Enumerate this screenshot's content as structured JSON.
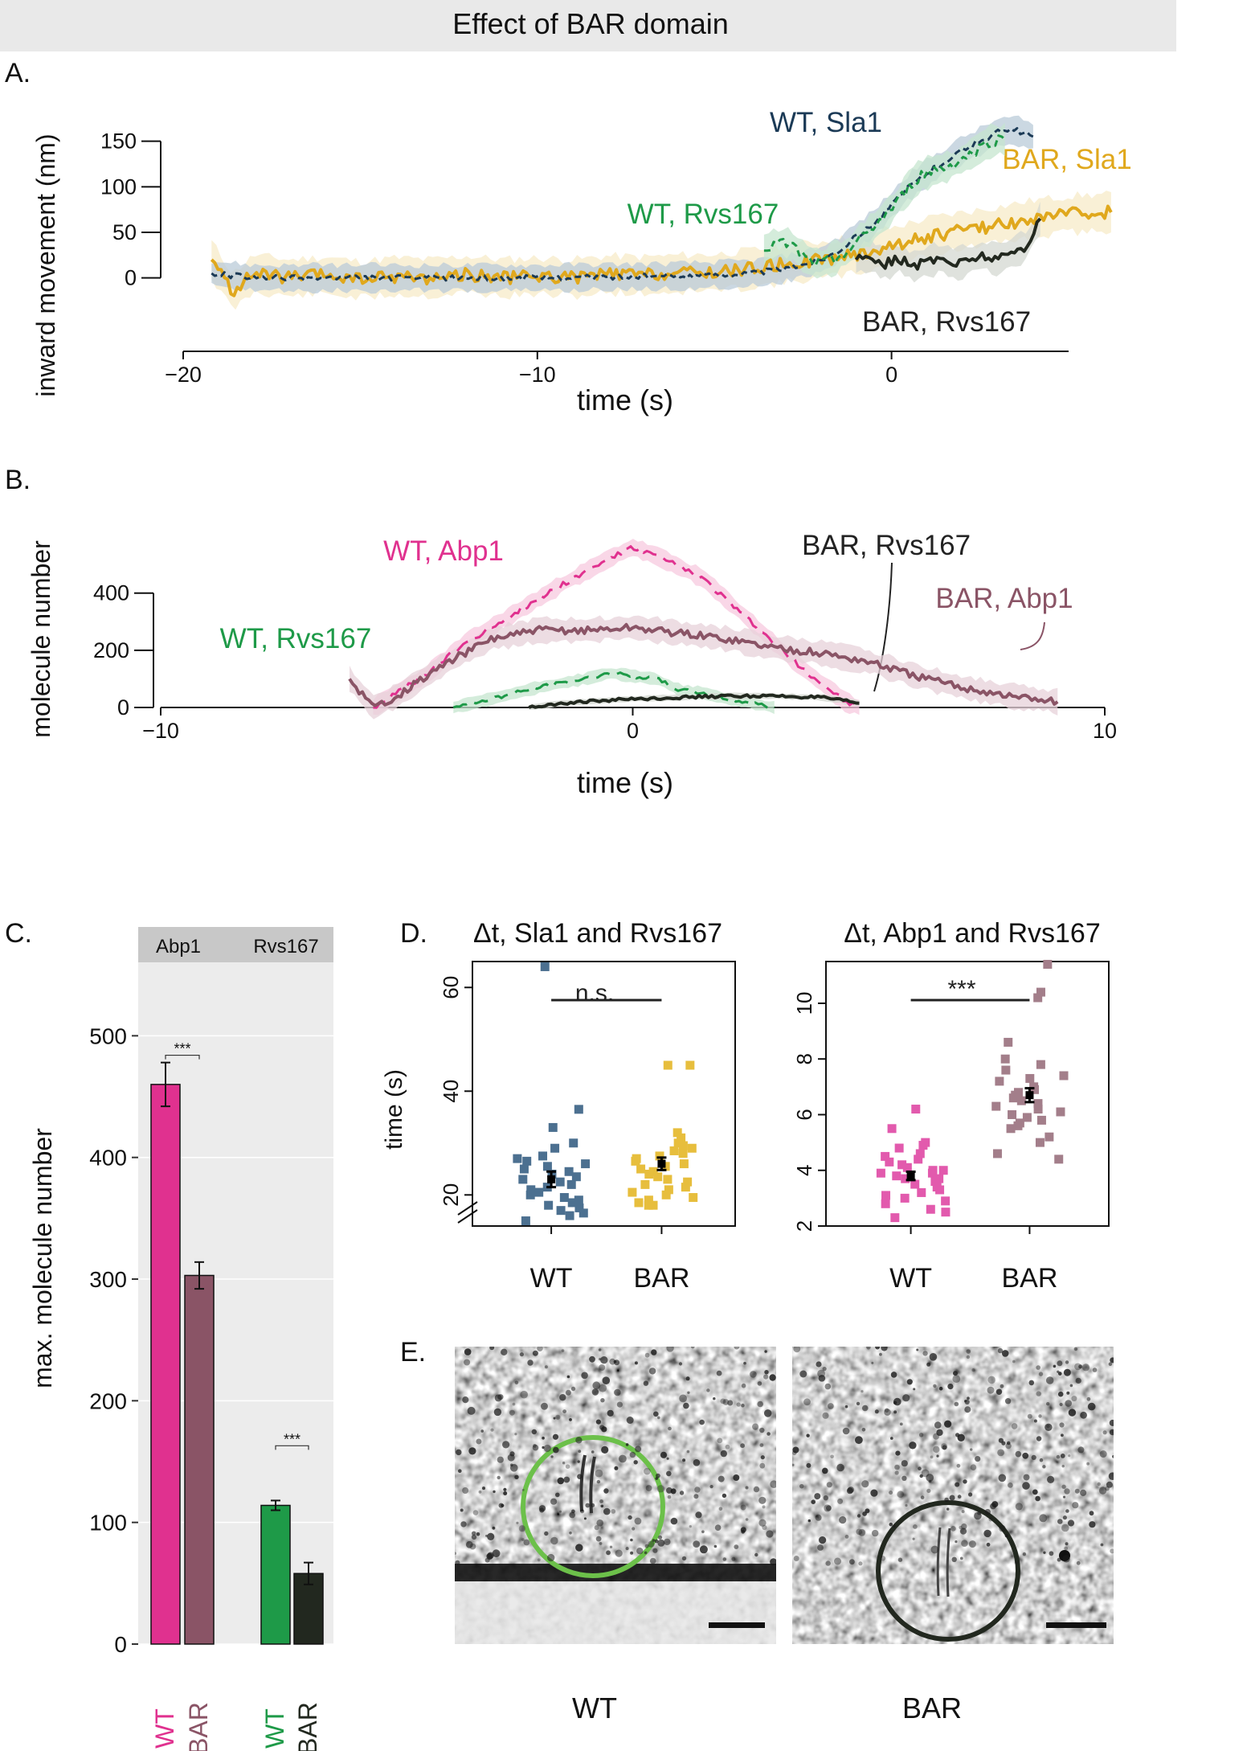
{
  "figure_title": "Effect of BAR domain",
  "colors": {
    "wt_sla1": "#1b3a56",
    "bar_sla1": "#e0a81d",
    "wt_rvs167": "#1e9a48",
    "bar_rvs167": "#22281f",
    "wt_abp1": "#e0318f",
    "bar_abp1": "#8a5466",
    "d_wt_sla1": "#4c7090",
    "d_bar_sla1": "#e7be3d",
    "d_wt_abp1": "#e25aad",
    "d_bar_abp1": "#a37e8a"
  },
  "panel_labels": {
    "a": "A.",
    "b": "B.",
    "c": "C.",
    "d": "D.",
    "e": "E."
  },
  "chart_data": [
    {
      "id": "A",
      "type": "line",
      "xlabel": "time (s)",
      "ylabel": "inward movement (nm)",
      "xlim": [
        -20,
        5
      ],
      "ylim": [
        -10,
        170
      ],
      "xticks": [
        -20,
        -10,
        0
      ],
      "xtick_labels": [
        "−20",
        "−10",
        "0"
      ],
      "yticks": [
        0,
        50,
        100,
        150
      ],
      "series": [
        {
          "name": "WT, Sla1",
          "style": "dashed",
          "color": "#1b3a56",
          "band": "#b9cbd8",
          "x": [
            -19.2,
            -18,
            -16,
            -14,
            -12,
            -10,
            -8,
            -6,
            -4,
            -3,
            -2,
            -1.5,
            -1,
            -0.5,
            0,
            0.5,
            1,
            1.5,
            2,
            2.5,
            3,
            3.5,
            4
          ],
          "y": [
            5,
            0,
            0,
            0,
            0,
            0,
            1,
            2,
            5,
            10,
            20,
            30,
            45,
            60,
            80,
            100,
            115,
            128,
            140,
            150,
            160,
            162,
            155
          ]
        },
        {
          "name": "WT, Rvs167",
          "style": "dashed",
          "color": "#1e9a48",
          "band": "#c5e6cf",
          "x": [
            -3.6,
            -3.2,
            -2.8,
            -2.4,
            -2,
            -1.6,
            -1.2,
            -0.8,
            -0.4,
            0,
            0.4,
            0.8,
            1.2,
            1.6,
            2,
            2.4,
            2.8,
            3.2
          ],
          "y": [
            30,
            38,
            35,
            20,
            15,
            22,
            30,
            45,
            60,
            75,
            95,
            112,
            118,
            122,
            130,
            140,
            150,
            152
          ]
        },
        {
          "name": "BAR, Sla1",
          "style": "solid",
          "color": "#e0a81d",
          "band": "#f7ebc8",
          "x": [
            -19.2,
            -18.6,
            -18,
            -17,
            -16,
            -15,
            -14,
            -13,
            -12,
            -11,
            -10,
            -9,
            -8,
            -7,
            -6,
            -5,
            -4,
            -3,
            -2,
            -1,
            0,
            1,
            2,
            3,
            4,
            5,
            6.2
          ],
          "y": [
            20,
            -15,
            5,
            0,
            3,
            -2,
            2,
            0,
            4,
            0,
            2,
            0,
            4,
            3,
            5,
            6,
            10,
            15,
            20,
            25,
            35,
            45,
            52,
            58,
            65,
            70,
            72
          ]
        },
        {
          "name": "BAR, Rvs167",
          "style": "solid",
          "color": "#22281f",
          "band": "#d4d8d2",
          "x": [
            -1,
            -0.6,
            -0.2,
            0.2,
            0.6,
            1,
            1.4,
            1.8,
            2.2,
            2.6,
            3,
            3.4,
            3.8,
            4.2
          ],
          "y": [
            20,
            25,
            15,
            22,
            12,
            18,
            22,
            15,
            20,
            25,
            20,
            28,
            35,
            65
          ]
        }
      ]
    },
    {
      "id": "B",
      "type": "line",
      "xlabel": "time (s)",
      "ylabel": "molecule number",
      "xlim": [
        -10,
        10
      ],
      "ylim": [
        0,
        520
      ],
      "xticks": [
        -10,
        0,
        10
      ],
      "xtick_labels": [
        "−10",
        "0",
        "10"
      ],
      "yticks": [
        0,
        200,
        400
      ],
      "series": [
        {
          "name": "WT, Abp1",
          "style": "dashed",
          "color": "#e0318f",
          "band": "#f7c9df",
          "x": [
            -5.5,
            -4.5,
            -3.5,
            -2.5,
            -1.5,
            -0.5,
            0,
            0.5,
            1.5,
            2.5,
            3.5,
            4.5,
            4.8
          ],
          "y": [
            0,
            100,
            230,
            330,
            430,
            520,
            560,
            530,
            450,
            300,
            150,
            20,
            0
          ]
        },
        {
          "name": "BAR, Abp1",
          "style": "solid",
          "color": "#8a5466",
          "band": "#e7d2da",
          "x": [
            -6,
            -5.5,
            -5,
            -4,
            -3,
            -2,
            -1,
            0,
            1,
            2,
            3,
            4,
            5,
            6,
            7,
            8,
            9
          ],
          "y": [
            100,
            0,
            40,
            150,
            240,
            270,
            270,
            280,
            260,
            240,
            210,
            190,
            160,
            110,
            70,
            40,
            20
          ]
        },
        {
          "name": "WT, Rvs167",
          "style": "dashed",
          "color": "#1e9a48",
          "band": "#c5e6cf",
          "x": [
            -3.8,
            -3,
            -2,
            -1,
            -0.5,
            0,
            0.5,
            1,
            1.5,
            2,
            3
          ],
          "y": [
            0,
            30,
            70,
            100,
            120,
            110,
            100,
            60,
            50,
            30,
            0
          ]
        },
        {
          "name": "BAR, Rvs167",
          "style": "solid",
          "color": "#22281f",
          "band": "#d4d8d2",
          "x": [
            -2.2,
            -1.5,
            -1,
            0,
            1,
            2,
            3,
            4,
            4.8
          ],
          "y": [
            0,
            15,
            20,
            30,
            35,
            40,
            40,
            35,
            15
          ]
        }
      ]
    },
    {
      "id": "C",
      "type": "bar",
      "ylabel": "max. molecule number",
      "ylim": [
        0,
        500
      ],
      "yticks": [
        0,
        100,
        200,
        300,
        400,
        500
      ],
      "facets": [
        "Abp1",
        "Rvs167"
      ],
      "significance": [
        "***",
        "***"
      ],
      "categories": [
        "WT",
        "BAR",
        "WT",
        "BAR"
      ],
      "values": [
        460,
        303,
        114,
        58
      ],
      "errors": [
        18,
        11,
        4,
        9
      ],
      "colors": [
        "#e0318f",
        "#8a5466",
        "#1e9a48",
        "#22281f"
      ]
    },
    {
      "id": "D1",
      "type": "scatter",
      "title": "Δt, Sla1 and Rvs167",
      "ylabel": "time (s)",
      "ylim": [
        14,
        65
      ],
      "yticks": [
        20,
        40,
        60
      ],
      "categories": [
        "WT",
        "BAR"
      ],
      "annotation": "n.s.",
      "groups": [
        {
          "name": "WT",
          "color": "#4c7090",
          "mean": 23,
          "sem": 1.5,
          "values": [
            64,
            36.5,
            33,
            30,
            29,
            27.5,
            27,
            26.5,
            26,
            25.5,
            25,
            24.5,
            24,
            23.5,
            23,
            22.5,
            22,
            21.5,
            21,
            20.5,
            20,
            19.5,
            19,
            18.5,
            18,
            17.5,
            17,
            16.5,
            16,
            15
          ]
        },
        {
          "name": "BAR",
          "color": "#e7be3d",
          "mean": 26,
          "sem": 1.2,
          "values": [
            45,
            45,
            32,
            31,
            30,
            29.5,
            29,
            28.5,
            28,
            27.5,
            27,
            26.5,
            26,
            25.5,
            25,
            24.5,
            24,
            23.5,
            23,
            22.5,
            22,
            21.5,
            21,
            20.5,
            20,
            19.5,
            19,
            18.5,
            18,
            18
          ]
        }
      ]
    },
    {
      "id": "D2",
      "type": "scatter",
      "title": "Δt, Abp1 and Rvs167",
      "ylabel": "",
      "ylim": [
        2,
        11.5
      ],
      "yticks": [
        2,
        4,
        6,
        8,
        10
      ],
      "categories": [
        "WT",
        "BAR"
      ],
      "annotation": "***",
      "groups": [
        {
          "name": "WT",
          "color": "#e25aad",
          "mean": 3.8,
          "sem": 0.15,
          "values": [
            6.2,
            5.5,
            5,
            4.9,
            4.8,
            4.6,
            4.5,
            4.4,
            4.3,
            4.2,
            4.1,
            4,
            3.9,
            3.8,
            3.7,
            3.6,
            3.5,
            3.4,
            3.3,
            3.2,
            3.1,
            3,
            2.9,
            2.8,
            2.6,
            2.5,
            2.3,
            3.7,
            3.9,
            4.0
          ]
        },
        {
          "name": "BAR",
          "color": "#a37e8a",
          "mean": 6.7,
          "sem": 0.25,
          "values": [
            11.4,
            10.4,
            10.2,
            8.6,
            8,
            7.8,
            7.6,
            7.4,
            7.3,
            7.2,
            7,
            6.9,
            6.8,
            6.7,
            6.6,
            6.5,
            6.4,
            6.3,
            6.2,
            6.1,
            6,
            5.9,
            5.8,
            5.7,
            5.6,
            5.5,
            5.2,
            5,
            4.6,
            4.4
          ]
        }
      ]
    }
  ],
  "panel_e": {
    "labels": [
      "WT",
      "BAR"
    ]
  }
}
